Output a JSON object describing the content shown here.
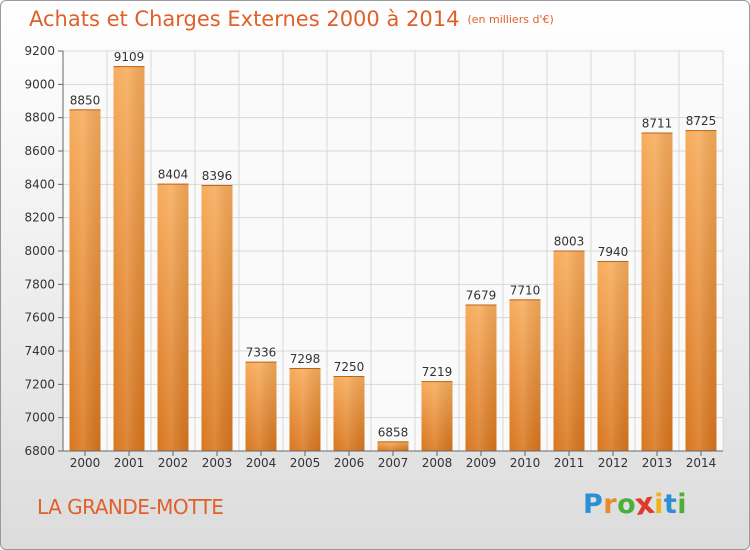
{
  "title": "Achats et Charges Externes 2000 à 2014",
  "subtitle": "(en milliers d'€)",
  "location": "LA GRANDE-MOTTE",
  "logo": {
    "text": "Proxiti",
    "letters": [
      {
        "ch": "P",
        "color": "#2b8fd6"
      },
      {
        "ch": "r",
        "color": "#e8892c"
      },
      {
        "ch": "o",
        "color": "#4caf3a"
      },
      {
        "ch": "x",
        "color": "#e23a2a"
      },
      {
        "ch": "i",
        "color": "#f0b21c"
      },
      {
        "ch": "t",
        "color": "#2b8fd6"
      },
      {
        "ch": "i",
        "color": "#4caf3a"
      }
    ]
  },
  "colors": {
    "bar_light": "#f7ac5c",
    "bar_dark": "#d9761e",
    "accent": "#e0602a",
    "grid": "#d8d8d8",
    "axis": "#666666"
  },
  "chart_data": {
    "type": "bar",
    "categories": [
      "2000",
      "2001",
      "2002",
      "2003",
      "2004",
      "2005",
      "2006",
      "2007",
      "2008",
      "2009",
      "2010",
      "2011",
      "2012",
      "2013",
      "2014"
    ],
    "values": [
      8850,
      9109,
      8404,
      8396,
      7336,
      7298,
      7250,
      6858,
      7219,
      7679,
      7710,
      8003,
      7940,
      8711,
      8725
    ],
    "title": "Achats et Charges Externes 2000 à 2014",
    "subtitle": "(en milliers d'€)",
    "ylim": [
      6800,
      9200
    ],
    "yticks": [
      6800,
      7000,
      7200,
      7400,
      7600,
      7800,
      8000,
      8200,
      8400,
      8600,
      8800,
      9000,
      9200
    ],
    "grid": true,
    "data_labels": true
  }
}
